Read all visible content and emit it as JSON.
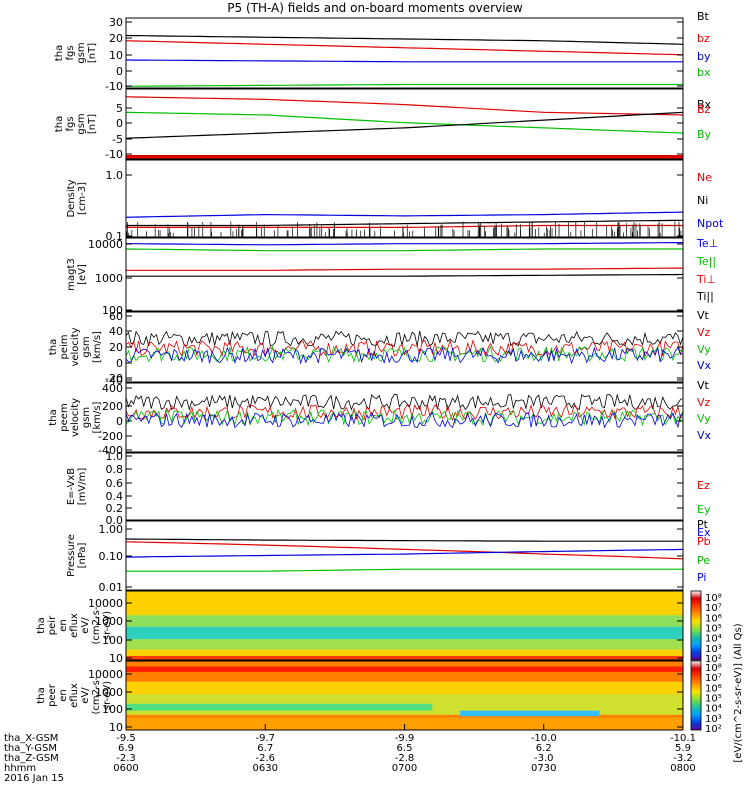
{
  "title": "P5 (TH-A) fields and on-board moments overview",
  "date_label": "2016 Jan 15",
  "xaxis": {
    "ticks": [
      "0600",
      "0630",
      "0700",
      "0730",
      "0800"
    ],
    "row_labels": [
      "tha_X-GSM",
      "tha_Y-GSM",
      "tha_Z-GSM",
      "hhmm"
    ],
    "rows": [
      [
        "-9.5",
        "-9.7",
        "-9.9",
        "-10.0",
        "-10.1"
      ],
      [
        "6.9",
        "6.7",
        "6.5",
        "6.2",
        "5.9"
      ],
      [
        "-2.3",
        "-2.6",
        "-2.8",
        "-3.0",
        "-3.2"
      ],
      [
        "0600",
        "0630",
        "0700",
        "0730",
        "0800"
      ]
    ]
  },
  "colorbars": [
    {
      "ticks": [
        "10⁸",
        "10⁷",
        "10⁶",
        "10⁵",
        "10⁴",
        "10³",
        "10²"
      ]
    },
    {
      "ticks": [
        "10⁸",
        "10⁷",
        "10⁶",
        "10⁵",
        "10⁴",
        "10³",
        "10²"
      ]
    }
  ],
  "colorbar_label": "[eV/(cm^2-s-sr-eV)] (All Qs)",
  "chart_data": [
    {
      "type": "line",
      "ylabel": "tha\nfgs\ngsm\n[nT]",
      "ylim": [
        -10,
        30
      ],
      "yticks": [
        "30",
        "20",
        "10",
        "0",
        "-10"
      ],
      "legend": [
        "Bt",
        "bz",
        "by",
        "bx"
      ],
      "x": [
        "0600",
        "0630",
        "0700",
        "0730",
        "0800"
      ],
      "series": [
        {
          "name": "Bt",
          "color": "#000000",
          "values": [
            20,
            19,
            18,
            17,
            15
          ]
        },
        {
          "name": "bz",
          "color": "#e00000",
          "values": [
            17,
            15,
            13,
            11,
            9
          ]
        },
        {
          "name": "by",
          "color": "#0000e0",
          "values": [
            6,
            5.5,
            5,
            5,
            5
          ]
        },
        {
          "name": "bx",
          "color": "#00c000",
          "values": [
            -9,
            -8.5,
            -8,
            -8,
            -8
          ]
        }
      ]
    },
    {
      "type": "line",
      "ylabel": "tha\nfgs\ngsm\n[nT]",
      "ylim": [
        -15,
        12
      ],
      "yticks": [
        "5",
        "0",
        "-5",
        "-10"
      ],
      "legend": [
        "Bx",
        "Bz",
        "By"
      ],
      "x": [
        "0600",
        "0630",
        "0700",
        "0730",
        "0800"
      ],
      "series": [
        {
          "name": "Bz",
          "color": "#e00000",
          "values": [
            9,
            8,
            6,
            3,
            2
          ]
        },
        {
          "name": "By",
          "color": "#00c000",
          "values": [
            3,
            2,
            -1,
            -3,
            -5
          ]
        },
        {
          "name": "Bx",
          "color": "#000000",
          "values": [
            -7,
            -5,
            -3,
            0,
            3
          ]
        }
      ]
    },
    {
      "type": "line",
      "ylabel": "Density\n[cm-3]",
      "ylim": [
        0.1,
        1.5
      ],
      "yscale": "log",
      "yticks": [
        "1.0",
        "0.1"
      ],
      "legend": [
        "Ne",
        "Ni",
        "Npot"
      ],
      "x": [
        "0600",
        "0630",
        "0700",
        "0730",
        "0800"
      ],
      "series": [
        {
          "name": "Ne",
          "color": "#e00000",
          "values": [
            0.14,
            0.14,
            0.14,
            0.15,
            0.15
          ]
        },
        {
          "name": "Ni",
          "color": "#000000",
          "values": [
            0.15,
            0.15,
            0.16,
            0.17,
            0.18
          ]
        },
        {
          "name": "Npot",
          "color": "#0000e0",
          "values": [
            0.2,
            0.22,
            0.21,
            0.22,
            0.24
          ]
        }
      ]
    },
    {
      "type": "line",
      "ylabel": "magt3\n[eV]",
      "ylim": [
        100,
        10000
      ],
      "yscale": "log",
      "yticks": [
        "10000",
        "1000",
        "100"
      ],
      "legend": [
        "Te⊥",
        "Te||",
        "Ti⊥",
        "Ti||"
      ],
      "x": [
        "0600",
        "0630",
        "0700",
        "0730",
        "0800"
      ],
      "series": [
        {
          "name": "Te⊥",
          "color": "#0000e0",
          "values": [
            7000,
            6500,
            7000,
            7000,
            7500
          ]
        },
        {
          "name": "Te||",
          "color": "#00c000",
          "values": [
            5000,
            4500,
            4500,
            5000,
            5000
          ]
        },
        {
          "name": "Ti⊥",
          "color": "#e00000",
          "values": [
            1300,
            1300,
            1400,
            1400,
            1500
          ]
        },
        {
          "name": "Ti||",
          "color": "#000000",
          "values": [
            900,
            900,
            900,
            950,
            1000
          ]
        }
      ]
    },
    {
      "type": "line",
      "ylabel": "tha\npeim\nvelocity\ngsm\n[km/s]",
      "ylim": [
        -40,
        60
      ],
      "yticks": [
        "60",
        "40",
        "20",
        "0",
        "-20",
        "-40"
      ],
      "legend": [
        "Vt",
        "Vz",
        "Vy",
        "Vx"
      ],
      "x": [
        "0600",
        "0630",
        "0700",
        "0730",
        "0800"
      ],
      "series": [
        {
          "name": "Vt",
          "color": "#000000",
          "values": [
            22,
            22,
            22,
            22,
            22
          ]
        },
        {
          "name": "Vz",
          "color": "#e00000",
          "values": [
            8,
            8,
            8,
            8,
            8
          ]
        },
        {
          "name": "Vy",
          "color": "#00c000",
          "values": [
            0,
            0,
            0,
            0,
            0
          ]
        },
        {
          "name": "Vx",
          "color": "#0000e0",
          "values": [
            -2,
            -2,
            -2,
            -2,
            -2
          ]
        }
      ]
    },
    {
      "type": "line",
      "ylabel": "tha\npeem\nvelocity\ngsm\n[km/s]",
      "ylim": [
        -400,
        400
      ],
      "yticks": [
        "400",
        "200",
        "0",
        "-200",
        "-400"
      ],
      "legend": [
        "Vt",
        "Vz",
        "Vy",
        "Vx"
      ],
      "x": [
        "0600",
        "0630",
        "0700",
        "0730",
        "0800"
      ],
      "series": [
        {
          "name": "Vt",
          "color": "#000000",
          "values": [
            180,
            180,
            180,
            180,
            180
          ]
        },
        {
          "name": "Vz",
          "color": "#e00000",
          "values": [
            60,
            60,
            60,
            60,
            60
          ]
        },
        {
          "name": "Vy",
          "color": "#00c000",
          "values": [
            0,
            0,
            0,
            0,
            0
          ]
        },
        {
          "name": "Vx",
          "color": "#0000e0",
          "values": [
            -30,
            -30,
            -30,
            -30,
            -30
          ]
        }
      ]
    },
    {
      "type": "line",
      "ylabel": "E=-VxB\n[mV/m]",
      "ylim": [
        0,
        1
      ],
      "yticks": [
        "1.0",
        "0.8",
        "0.6",
        "0.4",
        "0.2",
        "0.0"
      ],
      "legend": [
        "Ez",
        "Ey",
        "Ex"
      ],
      "x": [],
      "series": []
    },
    {
      "type": "line",
      "ylabel": "Pressure\n[nPa]",
      "ylim": [
        0.01,
        1
      ],
      "yscale": "log",
      "yticks": [
        "1.00",
        "0.10",
        "0.01"
      ],
      "legend": [
        "Pt",
        "Pb",
        "Pe",
        "Pi"
      ],
      "x": [
        "0600",
        "0630",
        "0700",
        "0730",
        "0800"
      ],
      "series": [
        {
          "name": "Pt",
          "color": "#000000",
          "values": [
            0.3,
            0.28,
            0.27,
            0.26,
            0.26
          ]
        },
        {
          "name": "Pb",
          "color": "#e00000",
          "values": [
            0.25,
            0.2,
            0.15,
            0.11,
            0.08
          ]
        },
        {
          "name": "Pi",
          "color": "#0000e0",
          "values": [
            0.09,
            0.1,
            0.11,
            0.13,
            0.15
          ]
        },
        {
          "name": "Pe",
          "color": "#00c000",
          "values": [
            0.035,
            0.035,
            0.04,
            0.04,
            0.04
          ]
        }
      ]
    },
    {
      "type": "heatmap",
      "ylabel": "tha\npeir\nen\neflux\neV/\n(cm2-s-\nsr-eV)",
      "ylim": [
        7,
        20000
      ],
      "yscale": "log",
      "yticks": [
        "10000",
        "1000",
        "100",
        "10"
      ]
    },
    {
      "type": "heatmap",
      "ylabel": "tha\npeer\nen\neflux\neV/\n(cm2-s-\nsr-eV)",
      "ylim": [
        7,
        20000
      ],
      "yscale": "log",
      "yticks": [
        "10000",
        "1000",
        "100",
        "10"
      ]
    }
  ]
}
